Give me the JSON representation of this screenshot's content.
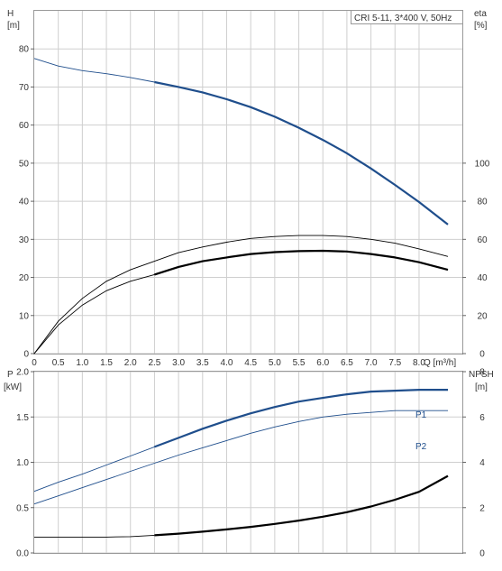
{
  "legend_box": {
    "text": "CRI 5-11, 3*400 V, 50Hz"
  },
  "top_axes": {
    "left_label_line1": "H",
    "left_label_line2": "[m]",
    "right_label_line1": "eta",
    "right_label_line2": "[%]",
    "x_unit_label": "Q [m³/h]"
  },
  "bottom_axes": {
    "left_label_line1": "P",
    "left_label_line2": "[kW]",
    "right_label_line1": "NPSH",
    "right_label_line2": "[m]"
  },
  "colors": {
    "head_curve": "#1f4e8c",
    "power_curve": "#1f4e8c",
    "eta_curves": "#000000",
    "npsh_curve": "#000000",
    "grid": "#cfcfcf",
    "frame": "#999999"
  },
  "chart_data": [
    {
      "type": "line",
      "name": "pump-head-efficiency",
      "x_ticks": [
        "0",
        "0.5",
        "1.0",
        "1.5",
        "2.0",
        "2.5",
        "3.0",
        "3.5",
        "4.0",
        "4.5",
        "5.0",
        "5.5",
        "6.0",
        "6.5",
        "7.0",
        "7.5",
        "8.0"
      ],
      "xlim": [
        0,
        8.9
      ],
      "ylim_left": [
        0,
        90
      ],
      "yticks_left": [
        "0",
        "10",
        "20",
        "30",
        "40",
        "50",
        "60",
        "70",
        "80"
      ],
      "ylim_right": [
        0,
        180
      ],
      "yticks_right": [
        "0",
        "20",
        "40",
        "60",
        "80",
        "100"
      ],
      "series": [
        {
          "name": "",
          "axis": "left",
          "style": "blue-thin-to-thick",
          "x": [
            0,
            0.5,
            1.0,
            1.5,
            2.0,
            2.5,
            3.0,
            3.5,
            4.0,
            4.5,
            5.0,
            5.5,
            6.0,
            6.5,
            7.0,
            7.5,
            8.0,
            8.6
          ],
          "y": [
            77.5,
            75.5,
            74.3,
            73.5,
            72.5,
            71.3,
            70.0,
            68.6,
            66.8,
            64.7,
            62.2,
            59.3,
            56.1,
            52.6,
            48.6,
            44.3,
            39.8,
            33.9
          ]
        },
        {
          "name": "",
          "axis": "right",
          "style": "black-thin",
          "x": [
            0,
            0.5,
            1.0,
            1.5,
            2.0,
            2.5,
            3.0,
            3.5,
            4.0,
            4.5,
            5.0,
            5.5,
            6.0,
            6.5,
            7.0,
            7.5,
            8.0,
            8.6
          ],
          "y": [
            0,
            17,
            29,
            38,
            44,
            48.5,
            53,
            56,
            58.5,
            60.5,
            61.5,
            62,
            62,
            61.5,
            60,
            58,
            55,
            51
          ]
        },
        {
          "name": "",
          "axis": "right",
          "style": "black-thin-to-thick",
          "x": [
            0,
            0.5,
            1.0,
            1.5,
            2.0,
            2.5,
            3.0,
            3.5,
            4.0,
            4.5,
            5.0,
            5.5,
            6.0,
            6.5,
            7.0,
            7.5,
            8.0,
            8.6
          ],
          "y": [
            0,
            15,
            25.5,
            33,
            38,
            41.5,
            45.5,
            48.5,
            50.5,
            52.3,
            53.3,
            53.8,
            54,
            53.6,
            52.3,
            50.5,
            48,
            44
          ]
        }
      ]
    },
    {
      "type": "line",
      "name": "pump-power-npsh",
      "xlim": [
        0,
        8.9
      ],
      "ylim_left": [
        0,
        2.0
      ],
      "yticks_left": [
        "0.0",
        "0.5",
        "1.0",
        "1.5",
        "2.0"
      ],
      "ylim_right": [
        0,
        8
      ],
      "yticks_right": [
        "0",
        "2",
        "4",
        "6",
        "8"
      ],
      "annotations": [
        "P1",
        "P2"
      ],
      "series": [
        {
          "name": "P1",
          "axis": "left",
          "style": "blue-thin-to-thick",
          "x": [
            0,
            0.5,
            1.0,
            1.5,
            2.0,
            2.5,
            3.0,
            3.5,
            4.0,
            4.5,
            5.0,
            5.5,
            6.0,
            6.5,
            7.0,
            7.5,
            8.0,
            8.6
          ],
          "y": [
            0.68,
            0.78,
            0.87,
            0.97,
            1.07,
            1.17,
            1.27,
            1.37,
            1.46,
            1.54,
            1.61,
            1.67,
            1.71,
            1.75,
            1.78,
            1.79,
            1.8,
            1.8
          ]
        },
        {
          "name": "P2",
          "axis": "left",
          "style": "blue-thin",
          "x": [
            0,
            0.5,
            1.0,
            1.5,
            2.0,
            2.5,
            3.0,
            3.5,
            4.0,
            4.5,
            5.0,
            5.5,
            6.0,
            6.5,
            7.0,
            7.5,
            8.0,
            8.6
          ],
          "y": [
            0.54,
            0.63,
            0.72,
            0.81,
            0.9,
            0.99,
            1.08,
            1.16,
            1.24,
            1.32,
            1.39,
            1.45,
            1.5,
            1.53,
            1.55,
            1.57,
            1.57,
            1.57
          ]
        },
        {
          "name": "",
          "axis": "right",
          "style": "black-thin-to-thick",
          "x": [
            0,
            0.5,
            1.0,
            1.5,
            2.0,
            2.5,
            3.0,
            3.5,
            4.0,
            4.5,
            5.0,
            5.5,
            6.0,
            6.5,
            7.0,
            7.5,
            8.0,
            8.6
          ],
          "y": [
            0.7,
            0.7,
            0.7,
            0.7,
            0.72,
            0.78,
            0.85,
            0.94,
            1.04,
            1.15,
            1.28,
            1.43,
            1.6,
            1.8,
            2.05,
            2.35,
            2.7,
            3.4
          ]
        }
      ]
    }
  ]
}
